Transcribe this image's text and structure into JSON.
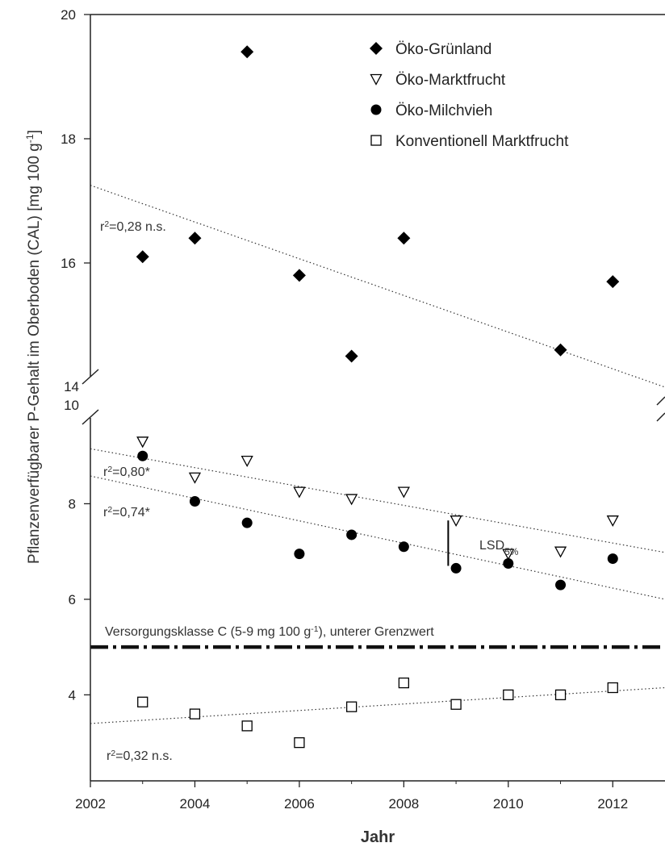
{
  "chart_data": {
    "type": "scatter",
    "ylabel": "Pflanzenverfügbarer P-Gehalt im Oberboden (CAL) [mg 100 g⁻¹]",
    "xlabel": "Jahr",
    "xlim": [
      2002,
      2013
    ],
    "x_ticks": [
      "2002",
      "2004",
      "2006",
      "2008",
      "2010",
      "2012"
    ],
    "y_axis_broken": true,
    "y_upper_range": [
      14,
      20
    ],
    "y_upper_ticks": [
      "14",
      "16",
      "18",
      "20"
    ],
    "y_lower_range": [
      2.2,
      10
    ],
    "y_lower_ticks": [
      "4",
      "6",
      "8",
      "10"
    ],
    "legend_position": "top-right",
    "series": [
      {
        "name": "Öko-Grünland",
        "marker": "diamond-filled",
        "segment": "upper",
        "x": [
          2003,
          2004,
          2005,
          2006,
          2007,
          2008,
          2011,
          2012
        ],
        "y": [
          16.1,
          16.4,
          19.4,
          15.8,
          14.5,
          16.4,
          14.6,
          15.7
        ],
        "trend": {
          "y_at_2002": 17.25,
          "y_at_2013": 14.0,
          "label": "r²=0,28 n.s."
        }
      },
      {
        "name": "Öko-Marktfrucht",
        "marker": "triangle-down-open",
        "segment": "lower",
        "x": [
          2003,
          2004,
          2005,
          2006,
          2007,
          2008,
          2009,
          2010,
          2011,
          2012
        ],
        "y": [
          9.3,
          8.55,
          8.9,
          8.25,
          8.1,
          8.25,
          7.65,
          6.95,
          7.0,
          7.65
        ],
        "trend": {
          "y_at_2002": 9.15,
          "y_at_2013": 6.98,
          "label": "r²=0,80*"
        }
      },
      {
        "name": "Öko-Milchvieh",
        "marker": "circle-filled",
        "segment": "lower",
        "x": [
          2003,
          2004,
          2005,
          2006,
          2007,
          2008,
          2009,
          2010,
          2011,
          2012
        ],
        "y": [
          9.0,
          8.05,
          7.6,
          6.95,
          7.35,
          7.1,
          6.65,
          6.75,
          6.3,
          6.85
        ],
        "trend": {
          "y_at_2002": 8.58,
          "y_at_2013": 6.0,
          "label": "r²=0,74*"
        }
      },
      {
        "name": "Konventionell Marktfrucht",
        "marker": "square-open",
        "segment": "lower",
        "x": [
          2003,
          2004,
          2005,
          2006,
          2007,
          2008,
          2009,
          2010,
          2011,
          2012
        ],
        "y": [
          3.85,
          3.6,
          3.35,
          3.0,
          3.75,
          4.25,
          3.8,
          4.0,
          4.0,
          4.15
        ],
        "trend": {
          "y_at_2002": 3.4,
          "y_at_2013": 4.15,
          "label": "r²=0,32 n.s."
        }
      }
    ],
    "reference_line": {
      "y": 5.0,
      "label": "Versorgungsklasse C (5-9 mg 100 g⁻¹), unterer Grenzwert"
    },
    "lsd_bar": {
      "x": 2008.85,
      "y_low": 6.7,
      "y_high": 7.65,
      "label": "LSD5%"
    }
  }
}
